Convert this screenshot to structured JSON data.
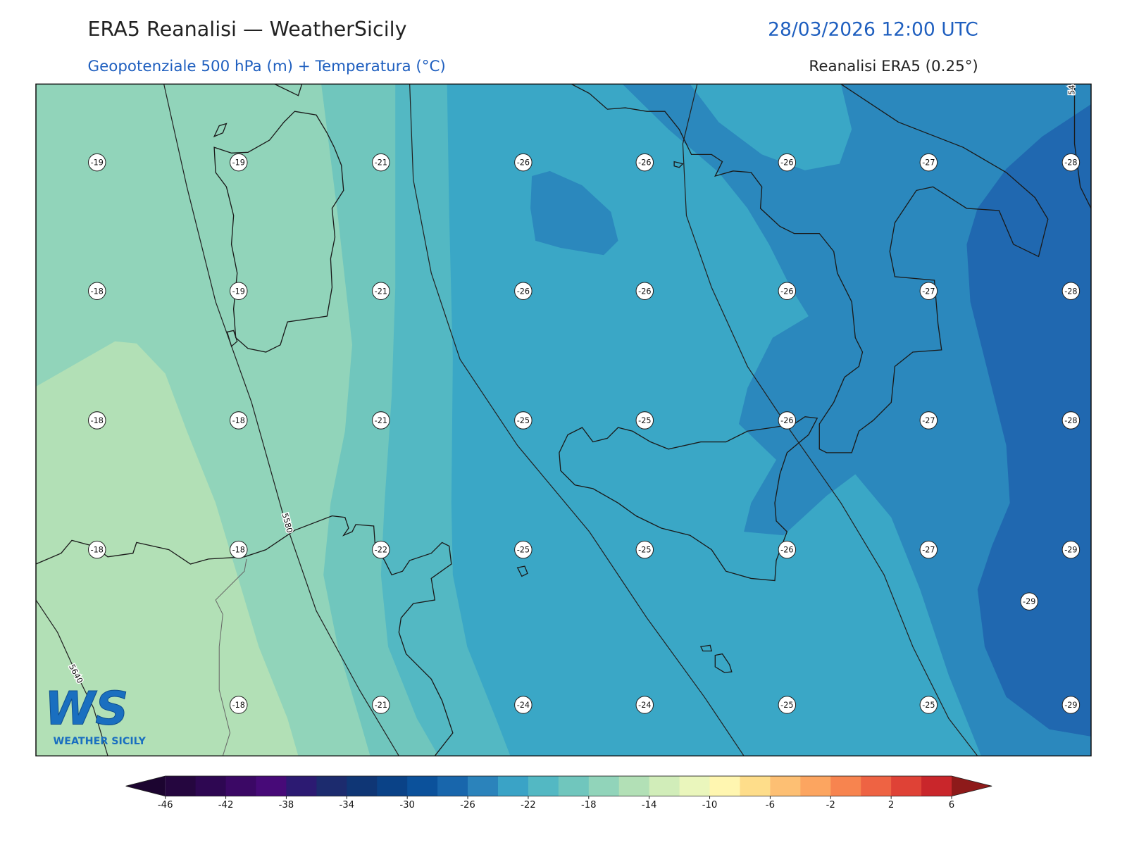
{
  "header": {
    "title": "ERA5 Reanalisi — WeatherSicily",
    "datetime": "28/03/2026 12:00 UTC",
    "subtitle": "Geopotenziale 500 hPa (m) + Temperatura (°C)",
    "source": "Reanalisi ERA5 (0.25°)"
  },
  "map": {
    "temperature_grid": [
      [
        -19,
        -19,
        -21,
        -26,
        -26,
        -26,
        -27,
        -28
      ],
      [
        -18,
        -19,
        -21,
        -26,
        -26,
        -26,
        -27,
        -28
      ],
      [
        -18,
        -18,
        -21,
        -25,
        -25,
        -26,
        -27,
        -28
      ],
      [
        -18,
        -18,
        -22,
        -25,
        -25,
        -26,
        -27,
        -29
      ],
      [
        null,
        -18,
        -21,
        -24,
        -24,
        -25,
        -25,
        -29
      ]
    ],
    "extra_temperature_labels": [
      -29
    ],
    "contour_labels": [
      5580,
      5640,
      54
    ]
  },
  "colorbar": {
    "levels": [
      -46,
      -44,
      -42,
      -40,
      -38,
      -36,
      -34,
      -32,
      -30,
      -28,
      -26,
      -24,
      -22,
      -20,
      -18,
      -16,
      -14,
      -12,
      -10,
      -8,
      -6,
      -4,
      -2,
      0,
      2,
      4,
      6
    ],
    "colors": [
      "#25063f",
      "#2e0752",
      "#3b0865",
      "#470a78",
      "#2c1a72",
      "#1c2b6e",
      "#0f3675",
      "#0a4287",
      "#0b519b",
      "#1866ac",
      "#2b83bb",
      "#3aa3c6",
      "#53b8c3",
      "#70c6bd",
      "#91d4ba",
      "#b2e0b6",
      "#d1edb9",
      "#eaf6bc",
      "#fff6b0",
      "#fedd8a",
      "#fdbf73",
      "#fca560",
      "#f7844f",
      "#ee6343",
      "#df4236",
      "#c9262b"
    ],
    "extend_colors": [
      "#1c0430",
      "#8e1a1a"
    ],
    "ticks": [
      -46,
      -42,
      -38,
      -34,
      -30,
      -26,
      -22,
      -18,
      -14,
      -10,
      -6,
      -2,
      2,
      6
    ]
  },
  "logo": {
    "mark": "WS",
    "text": "WEATHER SICILY"
  }
}
